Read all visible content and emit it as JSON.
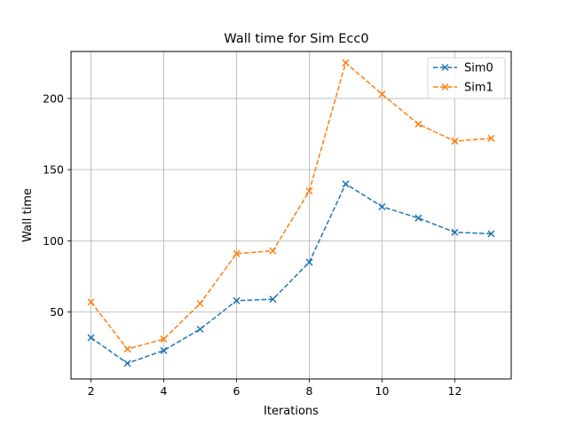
{
  "chart_data": {
    "type": "line",
    "title": "Wall time for Sim Ecc0",
    "xlabel": "Iterations",
    "ylabel": "Wall time",
    "x": [
      2,
      3,
      4,
      5,
      6,
      7,
      8,
      9,
      10,
      11,
      12,
      13
    ],
    "xlim": [
      1.45,
      13.55
    ],
    "ylim": [
      3,
      233
    ],
    "xticks": [
      "2",
      "4",
      "6",
      "8",
      "10",
      "12"
    ],
    "yticks": [
      "50",
      "100",
      "150",
      "200"
    ],
    "grid": true,
    "legend_position": "top-right",
    "series": [
      {
        "name": "Sim0",
        "color": "#1f77b4",
        "marker": "x",
        "linestyle": "dashed",
        "values": [
          32,
          14,
          23,
          38,
          58,
          59,
          85,
          140,
          124,
          116,
          106,
          105
        ]
      },
      {
        "name": "Sim1",
        "color": "#ff7f0e",
        "marker": "x",
        "linestyle": "dashed",
        "values": [
          57,
          24,
          31,
          56,
          91,
          93,
          135,
          225,
          203,
          182,
          170,
          172
        ]
      }
    ]
  }
}
